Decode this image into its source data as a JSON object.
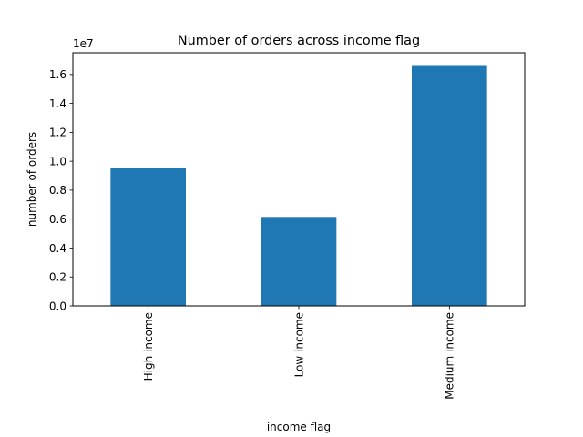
{
  "chart_data": {
    "type": "bar",
    "title": "Number of orders across income flag",
    "xlabel": "income flag",
    "ylabel": "number of orders",
    "categories": [
      "High income",
      "Low income",
      "Medium income"
    ],
    "values": [
      9550000,
      6150000,
      16650000
    ],
    "ylim": [
      0,
      17500000
    ],
    "yticks": [
      0,
      2000000,
      4000000,
      6000000,
      8000000,
      10000000,
      12000000,
      14000000,
      16000000
    ],
    "ytick_labels": [
      "0.0",
      "0.2",
      "0.4",
      "0.6",
      "0.8",
      "1.0",
      "1.2",
      "1.4",
      "1.6"
    ],
    "y_offset_label": "1e7",
    "bar_color": "#1f77b4",
    "grid": false,
    "legend": false
  }
}
